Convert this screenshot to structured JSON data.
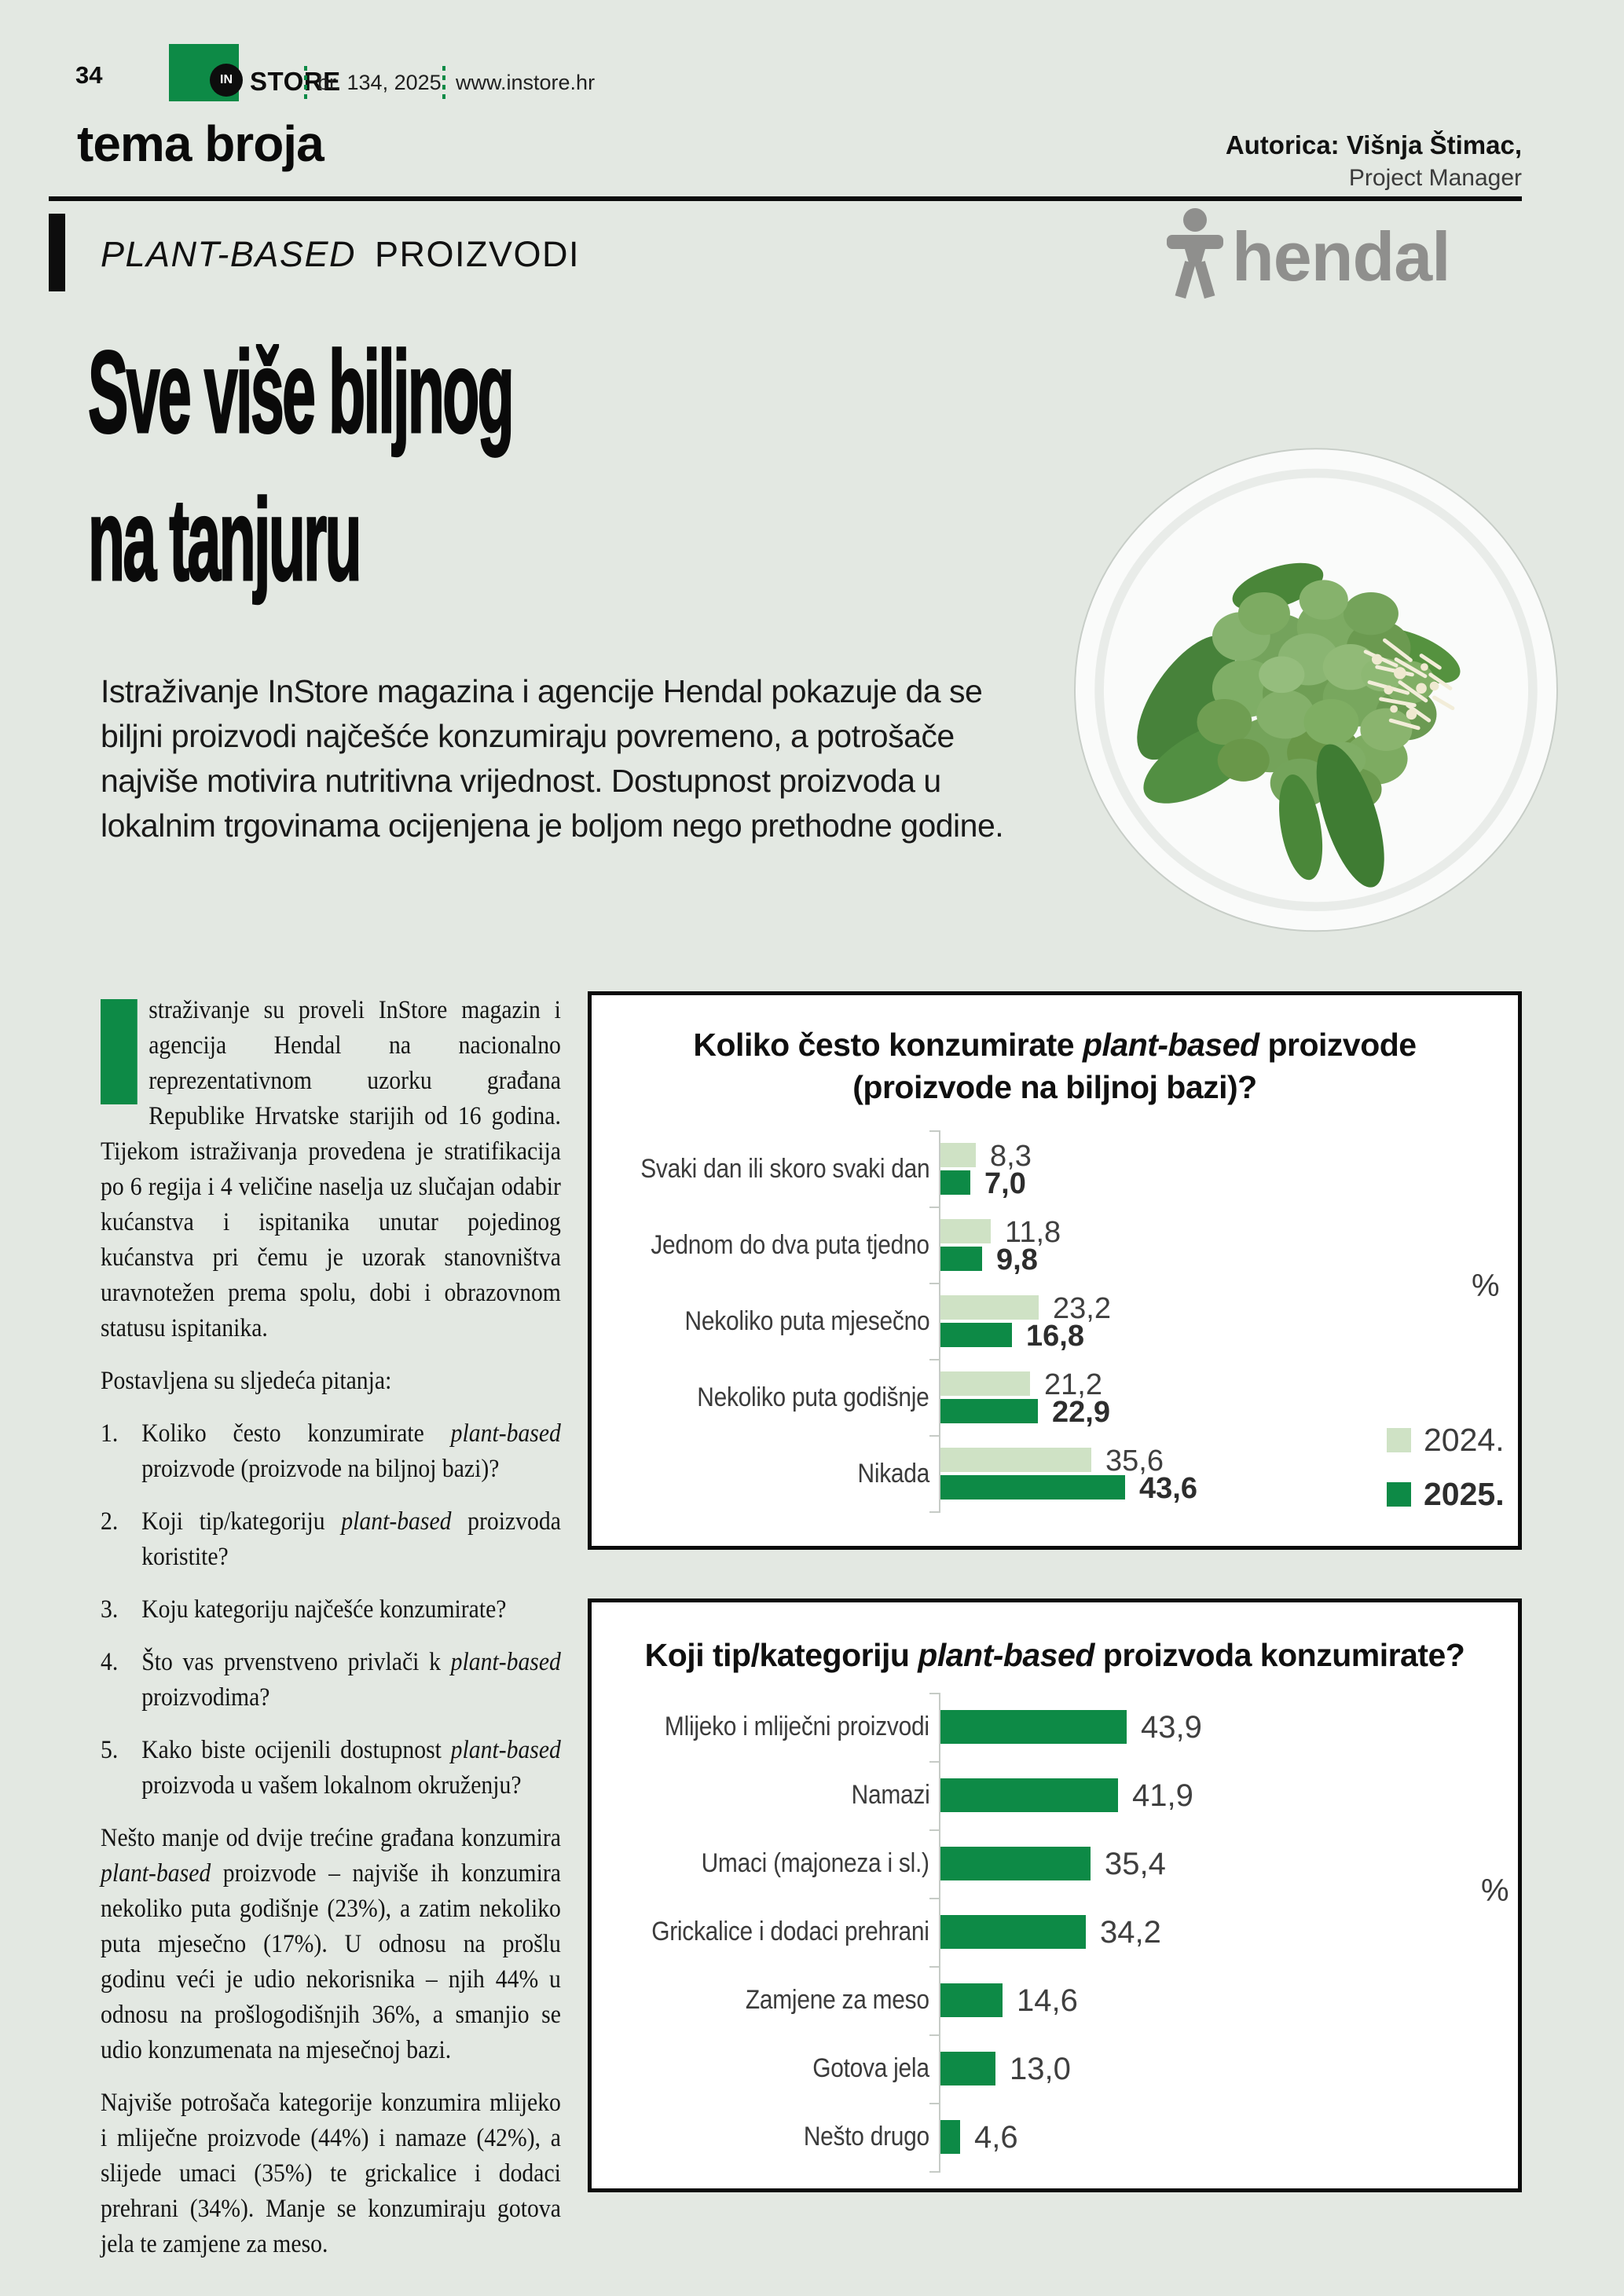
{
  "colors": {
    "page_bg": "#e3e8e2",
    "brand_green": "#0d8a46",
    "light_green_2024": "#cfe2c5",
    "dark_green_2025": "#0d8a46",
    "panel_border": "#0b0b0b",
    "hendal_gray": "#8f8f8d",
    "chart_text_gray": "#3b3b3b"
  },
  "header": {
    "page_number": "34",
    "logo_in": "IN",
    "logo_store": "STORE",
    "issue": "br. 134, 2025.",
    "website": "www.instore.hr",
    "section_title": "tema broja",
    "author_line": "Autorica: Višnja Štimac,",
    "author_role": "Project Manager"
  },
  "article": {
    "kicker_segments": [
      {
        "i": "PLANT-BASED"
      },
      {
        "t": " PROIZVODI"
      }
    ],
    "brand_wordmark": "hendal",
    "headline_line1": "Sve više biljnog",
    "headline_line2": "na tanjuru",
    "intro": "Istraživanje InStore magazina i agencije Hendal pokazuje da se biljni proizvodi najčešće konzumiraju povremeno, a potrošače najviše motivira nutritivna vrijednost. Dostupnost proizvoda u lokalnim trgovinama ocijenjena je boljom nego prethodne godine."
  },
  "column": {
    "paragraph1": "straživanje su proveli InStore magazin i agencija Hendal na nacionalno reprezentativnom uzorku građana Republike Hrvatske starijih od 16 godina. Tijekom istraživanja provedena je stratifikacija po 6 regija i 4 veličine naselja uz slučajan odabir kućanstva i ispitanika unutar pojedinog kućanstva pri čemu je uzorak stanovništva uravnotežen prema spolu, dobi i obrazovnom statusu ispitanika.",
    "questions_intro": "Postavljena su sljedeća pitanja:",
    "questions": [
      {
        "num": "1.",
        "segments": [
          {
            "t": "Koliko često konzumirate "
          },
          {
            "i": "plant-based"
          },
          {
            "t": " proizvode (proizvode na biljnoj bazi)?"
          }
        ]
      },
      {
        "num": "2.",
        "segments": [
          {
            "t": "Koji tip/kategoriju "
          },
          {
            "i": "plant-based"
          },
          {
            "t": " proizvoda koristite?"
          }
        ]
      },
      {
        "num": "3.",
        "segments": [
          {
            "t": "Koju kategoriju najčešće konzumirate?"
          }
        ]
      },
      {
        "num": "4.",
        "segments": [
          {
            "t": "Što vas prvenstveno privlači k "
          },
          {
            "i": "plant-based"
          },
          {
            "t": " proizvodima?"
          }
        ]
      },
      {
        "num": "5.",
        "segments": [
          {
            "t": "Kako biste ocijenili dostupnost "
          },
          {
            "i": "plant-based"
          },
          {
            "t": " proizvoda u vašem lokalnom okruženju?"
          }
        ]
      }
    ],
    "paragraph2_segments": [
      {
        "t": "Nešto manje od dvije trećine građana konzumira "
      },
      {
        "i": "plant-based"
      },
      {
        "t": " proizvode – najviše ih konzumira nekoliko puta godišnje (23%), a zatim nekoliko puta mjesečno (17%). U odnosu na prošlu godinu veći je udio nekorisnika – njih 44% u odnosu na prošlogodišnjih 36%, a smanjio se udio konzumenata na mjesečnoj bazi."
      }
    ],
    "paragraph3": "Najviše potrošača kategorije konzumira mlijeko i mliječne proizvode (44%) i namaze (42%), a slijede umaci (35%) te grickalice i dodaci prehrani (34%). Manje se konzumiraju gotova jela te zamjene za meso."
  },
  "chart_data": [
    {
      "type": "bar",
      "orientation": "horizontal",
      "title": "Koliko često konzumirate plant-based proizvode (proizvode na biljnoj bazi)?",
      "title_lines": [
        [
          {
            "t": "Koliko često konzumirate "
          },
          {
            "i": "plant-based"
          },
          {
            "t": " proizvode"
          }
        ],
        [
          {
            "t": "(proizvode na biljnoj bazi)?"
          }
        ]
      ],
      "categories": [
        "Svaki dan ili skoro svaki dan",
        "Jednom do dva puta tjedno",
        "Nekoliko puta mjesečno",
        "Nekoliko puta godišnje",
        "Nikada"
      ],
      "series": [
        {
          "name": "2024.",
          "color": "#cfe2c5",
          "values": [
            8.3,
            11.8,
            23.2,
            21.2,
            35.6
          ]
        },
        {
          "name": "2025.",
          "color": "#0d8a46",
          "values": [
            7.0,
            9.8,
            16.8,
            22.9,
            43.6
          ]
        }
      ],
      "unit": "%",
      "value_labels": true,
      "legend_position": "right",
      "xlim": [
        0,
        50
      ],
      "grid": false
    },
    {
      "type": "bar",
      "orientation": "horizontal",
      "title": "Koji tip/kategoriju plant-based proizvoda konzumirate?",
      "title_lines": [
        [
          {
            "t": "Koji tip/kategoriju "
          },
          {
            "i": "plant-based"
          },
          {
            "t": " proizvoda konzumirate?"
          }
        ]
      ],
      "categories": [
        "Mlijeko i mliječni proizvodi",
        "Namazi",
        "Umaci (majoneza i sl.)",
        "Grickalice i dodaci prehrani",
        "Zamjene za meso",
        "Gotova jela",
        "Nešto drugo"
      ],
      "values": [
        43.9,
        41.9,
        35.4,
        34.2,
        14.6,
        13.0,
        4.6
      ],
      "series_color": "#0d8a46",
      "unit": "%",
      "value_labels": true,
      "xlim": [
        0,
        50
      ],
      "grid": false
    }
  ]
}
